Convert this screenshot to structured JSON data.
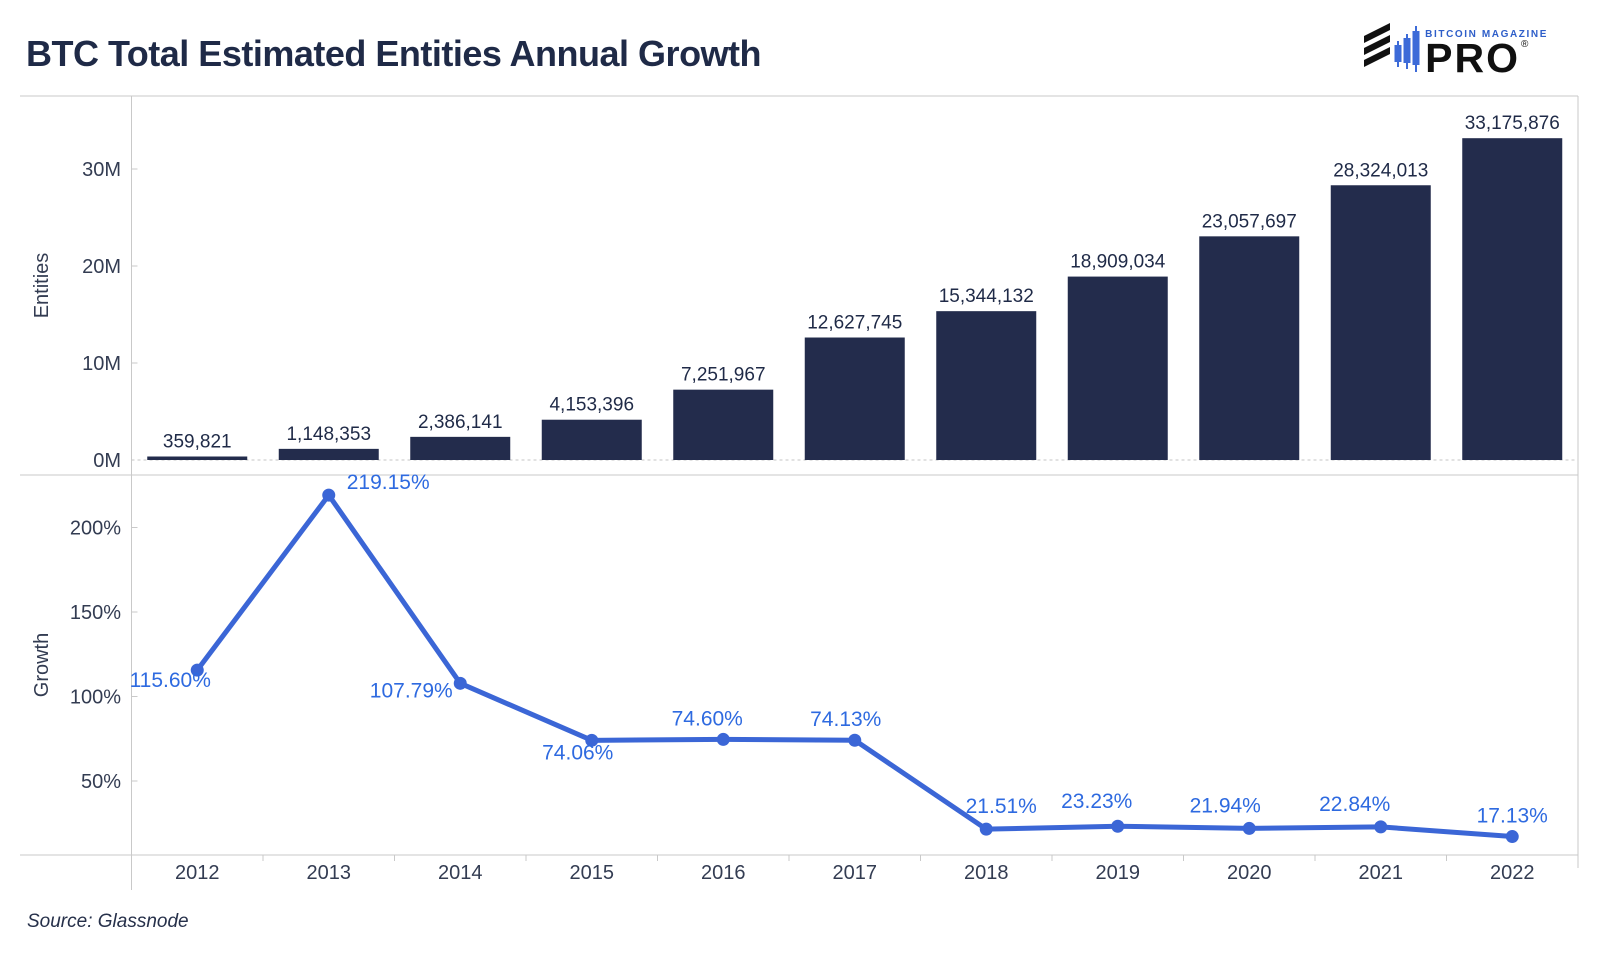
{
  "header": {
    "title": "BTC Total Estimated Entities Annual Growth"
  },
  "logo": {
    "magazine": "BITCOIN MAGAZINE",
    "pro": "PRO",
    "registered": "®"
  },
  "footer": {
    "source": "Source: Glassnode"
  },
  "colors": {
    "bar": "#232c4c",
    "bar_label": "#1f2a47",
    "line": "#3b66d6",
    "line_label": "#2e6ae0",
    "axis_text": "#333c52",
    "border": "#c9c9c9",
    "zero_dash": "#c6c6c6"
  },
  "chart_data": [
    {
      "type": "bar",
      "title": "",
      "xlabel": "",
      "ylabel": "Entities",
      "categories": [
        "2012",
        "2013",
        "2014",
        "2015",
        "2016",
        "2017",
        "2018",
        "2019",
        "2020",
        "2021",
        "2022"
      ],
      "values": [
        359821,
        1148353,
        2386141,
        4153396,
        7251967,
        12627745,
        15344132,
        18909034,
        23057697,
        28324013,
        33175876
      ],
      "labels": [
        "359,821",
        "1,148,353",
        "2,386,141",
        "4,153,396",
        "7,251,967",
        "12,627,745",
        "15,344,132",
        "18,909,034",
        "23,057,697",
        "28,324,013",
        "33,175,876"
      ],
      "yticks": [
        {
          "label": "0M",
          "value": 0
        },
        {
          "label": "10M",
          "value": 10000000
        },
        {
          "label": "20M",
          "value": 20000000
        },
        {
          "label": "30M",
          "value": 30000000
        }
      ],
      "ylim": [
        0,
        37500000
      ],
      "grid": false,
      "legend": "none"
    },
    {
      "type": "line",
      "title": "",
      "xlabel": "",
      "ylabel": "Growth",
      "categories": [
        "2012",
        "2013",
        "2014",
        "2015",
        "2016",
        "2017",
        "2018",
        "2019",
        "2020",
        "2021",
        "2022"
      ],
      "values": [
        115.6,
        219.15,
        107.79,
        74.06,
        74.6,
        74.13,
        21.51,
        23.23,
        21.94,
        22.84,
        17.13
      ],
      "labels": [
        "115.60%",
        "219.15%",
        "107.79%",
        "74.06%",
        "74.60%",
        "74.13%",
        "21.51%",
        "23.23%",
        "21.94%",
        "22.84%",
        "17.13%"
      ],
      "yticks": [
        {
          "label": "50%",
          "value": 50
        },
        {
          "label": "100%",
          "value": 100
        },
        {
          "label": "150%",
          "value": 150
        },
        {
          "label": "200%",
          "value": 200
        }
      ],
      "ylim": [
        6.2,
        231
      ],
      "grid": false,
      "legend": "none"
    }
  ]
}
